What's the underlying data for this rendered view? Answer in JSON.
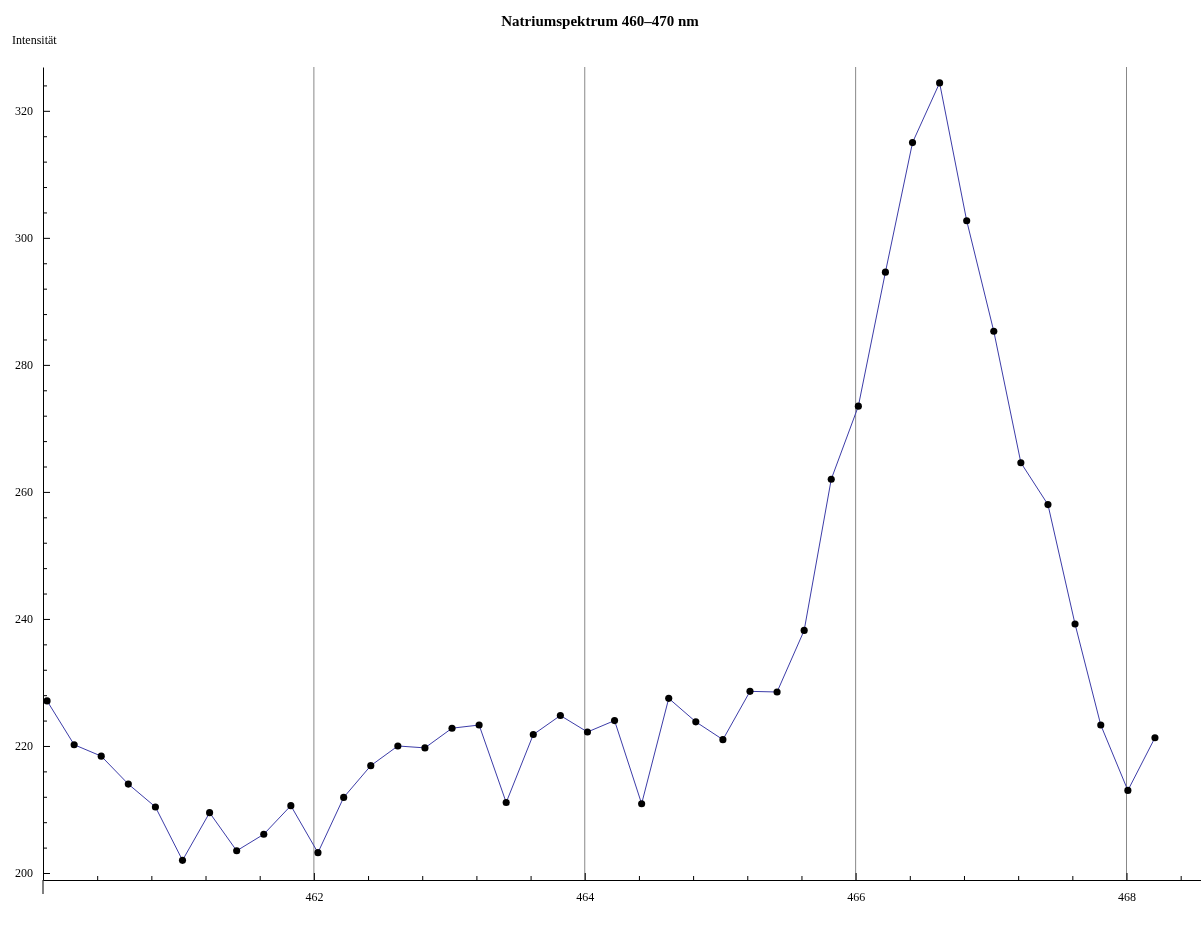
{
  "chart_data": {
    "type": "line",
    "title": "Natriumspektrum 460–470 nm",
    "ylabel": "Intensität",
    "x": [
      460.03,
      460.23,
      460.43,
      460.63,
      460.83,
      461.03,
      461.23,
      461.43,
      461.63,
      461.83,
      462.03,
      462.22,
      462.42,
      462.62,
      462.82,
      463.02,
      463.22,
      463.42,
      463.62,
      463.82,
      464.02,
      464.22,
      464.42,
      464.62,
      464.82,
      465.02,
      465.22,
      465.42,
      465.62,
      465.82,
      466.02,
      466.22,
      466.42,
      466.62,
      466.82,
      467.02,
      467.22,
      467.42,
      467.62,
      467.81,
      468.01,
      468.21
    ],
    "series": [
      {
        "color": "#3c3ca8",
        "marker": "none",
        "values": [
          227.1,
          220.2,
          218.4,
          214.0,
          210.4,
          202.0,
          209.5,
          203.5,
          206.1,
          210.6,
          203.2,
          211.9,
          216.9,
          220.0,
          219.7,
          222.8,
          223.3,
          211.1,
          221.8,
          224.8,
          222.2,
          224.0,
          210.9,
          227.5,
          223.8,
          221.0,
          228.6,
          228.5,
          238.2,
          262.0,
          273.5,
          294.6,
          315.0,
          324.4,
          302.7,
          285.3,
          264.6,
          258.0,
          239.2,
          223.3,
          213.0,
          221.3
        ]
      },
      {
        "type": "scatter",
        "color": "#000000",
        "marker": "circle",
        "values": [
          227.1,
          220.2,
          218.4,
          214.0,
          210.4,
          202.0,
          209.5,
          203.5,
          206.1,
          210.6,
          203.2,
          211.9,
          216.9,
          220.0,
          219.7,
          222.8,
          223.3,
          211.1,
          221.8,
          224.8,
          222.2,
          224.0,
          210.9,
          227.5,
          223.8,
          221.0,
          228.6,
          228.5,
          238.2,
          262.0,
          273.5,
          294.6,
          315.0,
          324.4,
          302.7,
          285.3,
          264.6,
          258.0,
          239.2,
          223.3,
          213.0,
          221.3
        ]
      }
    ],
    "xlim": [
      460,
      468.55
    ],
    "ylim": [
      198.9,
      326.9
    ],
    "xticks": [
      {
        "value": 460.4,
        "label": null
      },
      {
        "value": 460.8,
        "label": null
      },
      {
        "value": 461.2,
        "label": null
      },
      {
        "value": 461.6,
        "label": null
      },
      462,
      {
        "value": 462.4,
        "label": null
      },
      {
        "value": 462.8,
        "label": null
      },
      {
        "value": 463.2,
        "label": null
      },
      {
        "value": 463.6,
        "label": null
      },
      464,
      {
        "value": 464.4,
        "label": null
      },
      {
        "value": 464.8,
        "label": null
      },
      {
        "value": 465.2,
        "label": null
      },
      {
        "value": 465.6,
        "label": null
      },
      466,
      {
        "value": 466.4,
        "label": null
      },
      {
        "value": 466.8,
        "label": null
      },
      {
        "value": 467.2,
        "label": null
      },
      {
        "value": 467.6,
        "label": null
      },
      468,
      {
        "value": 468.4,
        "label": null
      }
    ],
    "yticks": [
      200,
      {
        "value": 204,
        "label": null
      },
      {
        "value": 208,
        "label": null
      },
      {
        "value": 212,
        "label": null
      },
      {
        "value": 216,
        "label": null
      },
      220,
      {
        "value": 224,
        "label": null
      },
      {
        "value": 228,
        "label": null
      },
      {
        "value": 232,
        "label": null
      },
      {
        "value": 236,
        "label": null
      },
      240,
      {
        "value": 244,
        "label": null
      },
      {
        "value": 248,
        "label": null
      },
      {
        "value": 252,
        "label": null
      },
      {
        "value": 256,
        "label": null
      },
      260,
      {
        "value": 264,
        "label": null
      },
      {
        "value": 268,
        "label": null
      },
      {
        "value": 272,
        "label": null
      },
      {
        "value": 276,
        "label": null
      },
      280,
      {
        "value": 284,
        "label": null
      },
      {
        "value": 288,
        "label": null
      },
      {
        "value": 292,
        "label": null
      },
      {
        "value": 296,
        "label": null
      },
      300,
      {
        "value": 304,
        "label": null
      },
      {
        "value": 308,
        "label": null
      },
      {
        "value": 312,
        "label": null
      },
      {
        "value": 316,
        "label": null
      },
      320,
      {
        "value": 324,
        "label": null
      }
    ],
    "grid": "x"
  }
}
